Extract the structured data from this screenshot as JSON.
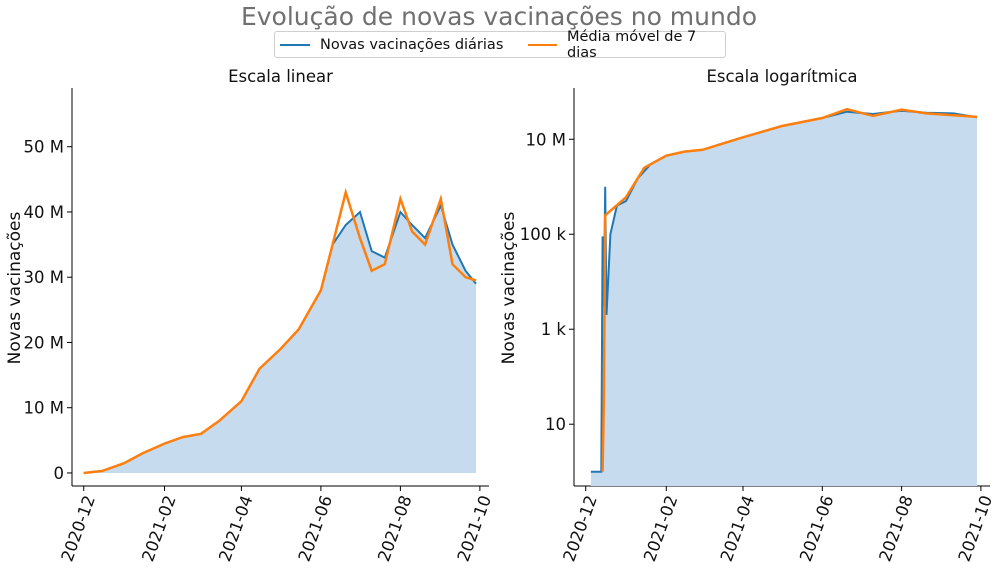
{
  "title": "Evolução de novas vacinações no mundo",
  "legend": [
    {
      "label": "Novas vacinações diárias",
      "color": "#1f77b4"
    },
    {
      "label": "Média móvel de 7 dias",
      "color": "#ff7f0e"
    }
  ],
  "colors": {
    "daily": "#1f77b4",
    "avg": "#ff7f0e",
    "fill": "#c6dbed"
  },
  "chart_data": [
    {
      "type": "line",
      "title": "Escala linear",
      "ylabel": "Novas vacinações",
      "xlabel": "",
      "xtick_labels": [
        "2020-12",
        "2021-02",
        "2021-04",
        "2021-06",
        "2021-08",
        "2021-10"
      ],
      "ytick_labels": [
        "0",
        "10 M",
        "20 M",
        "30 M",
        "40 M",
        "50 M"
      ],
      "ylim": [
        -2000000,
        59000000
      ],
      "xlim": [
        "2020-11-22",
        "2021-10-08"
      ],
      "y_scale": "linear",
      "series": [
        {
          "name": "Novas vacinações diárias",
          "x": [
            "2020-12-01",
            "2020-12-15",
            "2021-01-01",
            "2021-01-15",
            "2021-02-01",
            "2021-02-15",
            "2021-03-01",
            "2021-03-15",
            "2021-04-01",
            "2021-04-15",
            "2021-05-01",
            "2021-05-15",
            "2021-06-01",
            "2021-06-10",
            "2021-06-20",
            "2021-07-01",
            "2021-07-10",
            "2021-07-20",
            "2021-08-01",
            "2021-08-10",
            "2021-08-20",
            "2021-09-01",
            "2021-09-10",
            "2021-09-20",
            "2021-09-28"
          ],
          "y": [
            0,
            300000,
            1500000,
            3000000,
            4500000,
            5500000,
            6000000,
            8000000,
            11000000,
            16000000,
            19000000,
            22000000,
            28000000,
            35000000,
            38000000,
            40000000,
            34000000,
            33000000,
            40000000,
            38000000,
            36000000,
            41000000,
            35000000,
            31000000,
            29000000
          ]
        },
        {
          "name": "Média móvel de 7 dias",
          "x": [
            "2020-12-01",
            "2020-12-15",
            "2021-01-01",
            "2021-01-15",
            "2021-02-01",
            "2021-02-15",
            "2021-03-01",
            "2021-03-15",
            "2021-04-01",
            "2021-04-15",
            "2021-05-01",
            "2021-05-15",
            "2021-06-01",
            "2021-06-10",
            "2021-06-20",
            "2021-07-01",
            "2021-07-10",
            "2021-07-20",
            "2021-08-01",
            "2021-08-10",
            "2021-08-20",
            "2021-09-01",
            "2021-09-10",
            "2021-09-20",
            "2021-09-28"
          ],
          "y": [
            0,
            300000,
            1500000,
            3000000,
            4500000,
            5500000,
            6000000,
            8000000,
            11000000,
            16000000,
            19000000,
            22000000,
            28000000,
            35000000,
            43000000,
            36000000,
            31000000,
            32000000,
            42000000,
            37000000,
            35000000,
            42000000,
            32000000,
            30000000,
            29500000
          ]
        }
      ]
    },
    {
      "type": "line",
      "title": "Escala logarítmica",
      "ylabel": "Novas vacinações",
      "xlabel": "",
      "xtick_labels": [
        "2020-12",
        "2021-02",
        "2021-04",
        "2021-06",
        "2021-08",
        "2021-10"
      ],
      "ytick_labels": [
        "10",
        "100 k",
        "1 k",
        "10 M"
      ],
      "ylim": [
        0.5,
        120000000
      ],
      "xlim": [
        "2020-11-22",
        "2021-10-08"
      ],
      "y_scale": "log",
      "series": [
        {
          "name": "Novas vacinações diárias",
          "x": [
            "2020-12-05",
            "2020-12-08",
            "2020-12-10",
            "2020-12-13",
            "2020-12-14",
            "2020-12-15",
            "2020-12-16",
            "2020-12-17",
            "2020-12-20",
            "2020-12-25",
            "2021-01-01",
            "2021-01-10",
            "2021-01-20",
            "2021-02-01",
            "2021-02-15",
            "2021-03-01",
            "2021-03-15",
            "2021-04-01",
            "2021-05-01",
            "2021-06-01",
            "2021-06-20",
            "2021-07-10",
            "2021-08-01",
            "2021-08-20",
            "2021-09-10",
            "2021-09-28"
          ],
          "y": [
            1,
            1,
            1,
            1,
            90000,
            3000,
            1000000,
            2000,
            100000,
            400000,
            500000,
            1500000,
            3000000,
            4500000,
            5500000,
            6000000,
            8000000,
            11000000,
            19000000,
            28000000,
            38000000,
            34000000,
            40000000,
            36000000,
            35000000,
            29000000
          ]
        },
        {
          "name": "Média móvel de 7 dias",
          "x": [
            "2020-12-14",
            "2020-12-15",
            "2020-12-16",
            "2021-01-01",
            "2021-01-15",
            "2021-02-01",
            "2021-02-15",
            "2021-03-01",
            "2021-04-01",
            "2021-05-01",
            "2021-06-01",
            "2021-06-20",
            "2021-07-10",
            "2021-08-01",
            "2021-08-20",
            "2021-09-10",
            "2021-09-28"
          ],
          "y": [
            1,
            40,
            250000,
            600000,
            2500000,
            4500000,
            5500000,
            6000000,
            11000000,
            19000000,
            28000000,
            43000000,
            31000000,
            42000000,
            35000000,
            32000000,
            29500000
          ]
        }
      ]
    }
  ]
}
